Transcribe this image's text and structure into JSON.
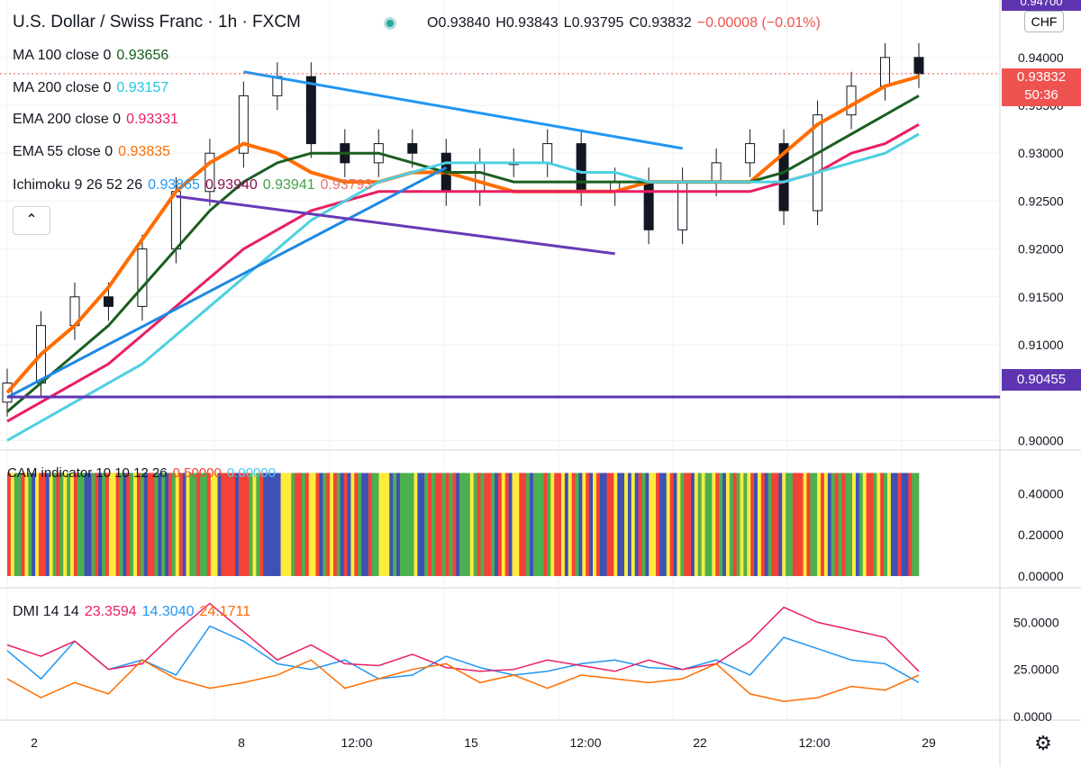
{
  "header": {
    "title": "U.S. Dollar / Swiss Franc · 1h · FXCM",
    "open": "O0.93840",
    "high": "H0.93843",
    "low": "L0.93795",
    "close": "C0.93832",
    "change": "−0.00008 (−0.01%)",
    "currency_badge": "CHF",
    "status_dot_color": "#26a69a"
  },
  "legend": {
    "ma100": {
      "name": "MA 100 close 0",
      "value": "0.93656",
      "color": "#1b5e20"
    },
    "ma200": {
      "name": "MA 200 close 0",
      "value": "0.93157",
      "color": "#4dd0e1"
    },
    "ema200": {
      "name": "EMA 200 close 0",
      "value": "0.93331",
      "color": "#e91e63"
    },
    "ema55": {
      "name": "EMA 55 close 0",
      "value": "0.93835",
      "color": "#ff6d00"
    },
    "ichimoku": {
      "name": "Ichimoku 9 26 52 26",
      "v1": "0.93865",
      "v2": "0.93940",
      "v3": "0.93941",
      "v4": "0.93793"
    },
    "collapse_icon": "chevron-up-icon"
  },
  "price_tags": {
    "top_cut": "0.94700",
    "current": "0.93832",
    "countdown": "50:36",
    "support": "0.90455"
  },
  "cam": {
    "name": "CAM indicator 10 10 12 26",
    "v1": "0.50000",
    "v2": "0.00000"
  },
  "dmi": {
    "name": "DMI 14 14",
    "v1": "23.3594",
    "v2": "14.3040",
    "v3": "24.1711"
  },
  "settings_icon": "gear-icon",
  "chart_data": [
    {
      "type": "line",
      "panel": "price",
      "y_ticks": [
        "0.94000",
        "0.93500",
        "0.93000",
        "0.92500",
        "0.92000",
        "0.91500",
        "0.91000",
        "0.90000"
      ],
      "ylim": [
        0.899,
        0.946
      ],
      "x_ticks": [
        "2",
        "8",
        "12:00",
        "15",
        "12:00",
        "22",
        "12:00",
        "29"
      ],
      "series": [
        {
          "name": "EMA 55 close 0",
          "color": "#ff6d00",
          "values": [
            0.905,
            0.909,
            0.912,
            0.916,
            0.921,
            0.926,
            0.929,
            0.931,
            0.93,
            0.928,
            0.927,
            0.927,
            0.928,
            0.928,
            0.927,
            0.926,
            0.926,
            0.926,
            0.926,
            0.927,
            0.927,
            0.927,
            0.927,
            0.93,
            0.933,
            0.935,
            0.937,
            0.938
          ]
        },
        {
          "name": "MA 100 close 0",
          "color": "#1b5e20",
          "values": [
            0.903,
            0.906,
            0.909,
            0.912,
            0.916,
            0.92,
            0.924,
            0.927,
            0.929,
            0.93,
            0.93,
            0.93,
            0.929,
            0.928,
            0.928,
            0.927,
            0.927,
            0.927,
            0.927,
            0.927,
            0.927,
            0.927,
            0.927,
            0.928,
            0.93,
            0.932,
            0.934,
            0.936
          ]
        },
        {
          "name": "EMA 200 close 0",
          "color": "#e91e63",
          "values": [
            0.902,
            0.904,
            0.906,
            0.908,
            0.911,
            0.914,
            0.917,
            0.92,
            0.922,
            0.924,
            0.925,
            0.926,
            0.926,
            0.926,
            0.926,
            0.926,
            0.926,
            0.926,
            0.926,
            0.926,
            0.926,
            0.926,
            0.926,
            0.927,
            0.928,
            0.93,
            0.931,
            0.933
          ]
        },
        {
          "name": "MA 200 close 0",
          "color": "#4dd0e1",
          "values": [
            0.9,
            0.902,
            0.904,
            0.906,
            0.908,
            0.911,
            0.914,
            0.917,
            0.92,
            0.923,
            0.925,
            0.927,
            0.928,
            0.929,
            0.929,
            0.929,
            0.929,
            0.928,
            0.928,
            0.927,
            0.927,
            0.927,
            0.927,
            0.927,
            0.928,
            0.929,
            0.93,
            0.932
          ]
        }
      ],
      "close": [
        0.906,
        0.912,
        0.915,
        0.914,
        0.92,
        0.926,
        0.93,
        0.936,
        0.938,
        0.931,
        0.929,
        0.931,
        0.93,
        0.926,
        0.929,
        0.929,
        0.931,
        0.926,
        0.927,
        0.922,
        0.927,
        0.929,
        0.931,
        0.924,
        0.934,
        0.937,
        0.94,
        0.9383
      ],
      "trendlines": [
        {
          "color": "#1e88e5",
          "from": [
            0,
            0.9045
          ],
          "to": [
            13,
            0.9285
          ]
        },
        {
          "color": "#2196f3",
          "from": [
            7,
            0.9385
          ],
          "to": [
            20,
            0.9305
          ]
        },
        {
          "color": "#673ab7",
          "from": [
            5,
            0.9255
          ],
          "to": [
            18,
            0.9195
          ]
        },
        {
          "color": "#5e35b1",
          "from": [
            0,
            0.90455
          ],
          "to": [
            27.9,
            0.90455
          ]
        }
      ]
    },
    {
      "type": "bar",
      "panel": "cam",
      "ylim": [
        0,
        0.55
      ],
      "y_ticks": [
        "0.40000",
        "0.20000",
        "0.00000"
      ],
      "value": 0.5,
      "colors": [
        "#4caf50",
        "#f44336",
        "#ffeb3b",
        "#3f51b5"
      ]
    },
    {
      "type": "line",
      "panel": "dmi",
      "ylim": [
        0,
        65
      ],
      "y_ticks": [
        "50.0000",
        "25.0000",
        "0.0000"
      ],
      "series": [
        {
          "name": "+DI",
          "color": "#2196f3",
          "values": [
            35,
            20,
            40,
            25,
            30,
            22,
            48,
            40,
            28,
            25,
            30,
            20,
            22,
            32,
            26,
            22,
            24,
            28,
            30,
            26,
            25,
            30,
            22,
            42,
            36,
            30,
            28,
            18
          ]
        },
        {
          "name": "ADX",
          "color": "#e91e63",
          "values": [
            38,
            32,
            40,
            25,
            28,
            45,
            60,
            45,
            30,
            38,
            28,
            27,
            33,
            26,
            24,
            25,
            30,
            27,
            24,
            30,
            25,
            28,
            40,
            58,
            50,
            46,
            42,
            24
          ]
        },
        {
          "name": "-DI",
          "color": "#ff6d00",
          "values": [
            20,
            10,
            18,
            12,
            30,
            20,
            15,
            18,
            22,
            30,
            15,
            20,
            25,
            28,
            18,
            22,
            15,
            22,
            20,
            18,
            20,
            28,
            12,
            8,
            10,
            16,
            14,
            22
          ]
        }
      ]
    }
  ]
}
